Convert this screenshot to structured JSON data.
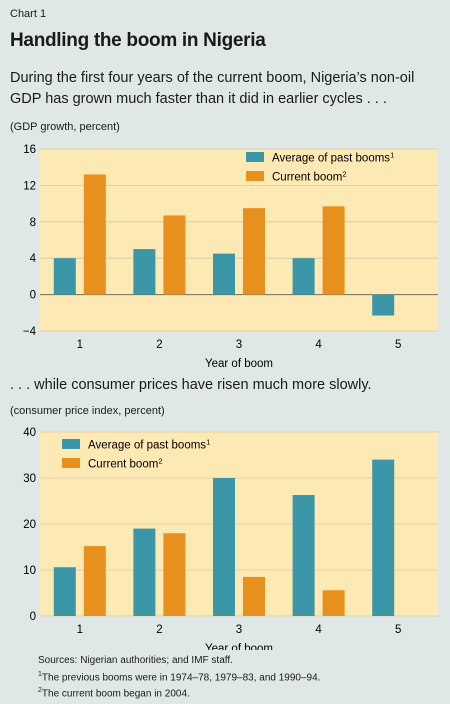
{
  "header": {
    "chart_label": "Chart 1",
    "title": "Handling the boom in Nigeria",
    "subtitle": "During the first four years of the current boom, Nigeria’s non-oil GDP has grown much faster than it did in earlier cycles . . .",
    "subtitle2": ". . . while consumer prices have risen much more slowly."
  },
  "notes": {
    "sources": "Sources: Nigerian authorities; and IMF staff.",
    "fn1_mark": "1",
    "fn1": "The previous booms were in 1974–78, 1979–83, and 1990–94.",
    "fn2_mark": "2",
    "fn2": "The current boom began in 2004."
  },
  "colors": {
    "background": "#dfe8e6",
    "plot_background": "#fde9b4",
    "past": "#3b96a8",
    "current": "#e8901d"
  },
  "chart_data": [
    {
      "type": "bar",
      "unit_label": "(GDP growth, percent)",
      "categories": [
        "1",
        "2",
        "3",
        "4",
        "5"
      ],
      "xlabel": "Year of boom",
      "ylabel": "",
      "ylim": [
        -4,
        16
      ],
      "yticks": [
        -4,
        0,
        4,
        8,
        12,
        16
      ],
      "legend_position": "top-right",
      "series": [
        {
          "name": "Average of past booms",
          "sup": "1",
          "color": "#3b96a8",
          "values": [
            4.0,
            5.0,
            4.5,
            4.0,
            -2.3
          ]
        },
        {
          "name": "Current boom",
          "sup": "2",
          "color": "#e8901d",
          "values": [
            13.2,
            8.7,
            9.5,
            9.7,
            null
          ]
        }
      ]
    },
    {
      "type": "bar",
      "unit_label": "(consumer price index, percent)",
      "categories": [
        "1",
        "2",
        "3",
        "4",
        "5"
      ],
      "xlabel": "Year of boom",
      "ylabel": "",
      "ylim": [
        0,
        40
      ],
      "yticks": [
        0,
        10,
        20,
        30,
        40
      ],
      "legend_position": "top-left",
      "series": [
        {
          "name": "Average of past booms",
          "sup": "1",
          "color": "#3b96a8",
          "values": [
            10.6,
            19.0,
            30.0,
            26.3,
            34.0
          ]
        },
        {
          "name": "Current boom",
          "sup": "2",
          "color": "#e8901d",
          "values": [
            15.2,
            18.0,
            8.5,
            5.6,
            null
          ]
        }
      ]
    }
  ]
}
